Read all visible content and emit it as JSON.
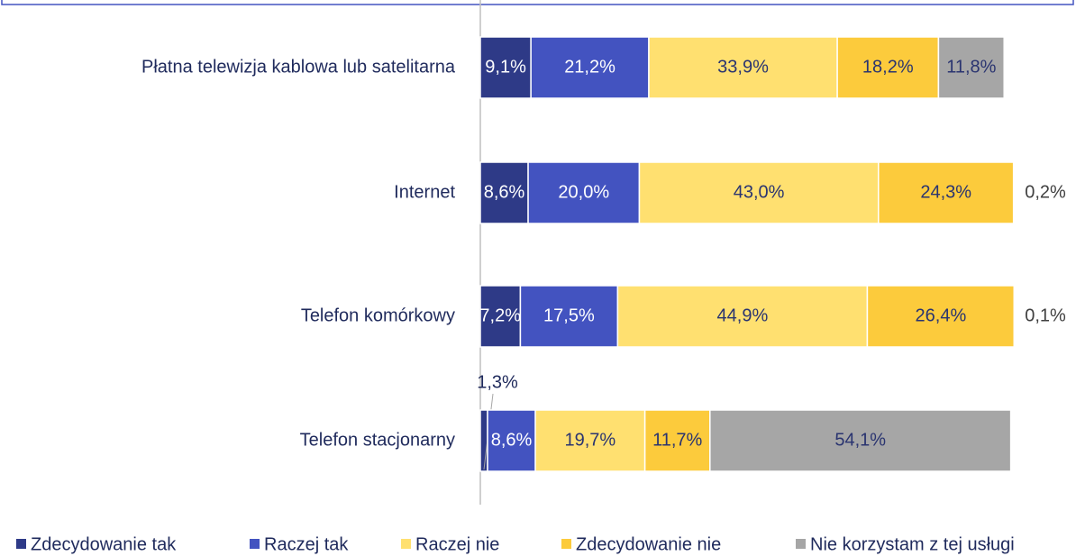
{
  "chart_data": {
    "type": "stacked-barh",
    "categories": [
      "Płatna telewizja kablowa lub satelitarna",
      "Internet",
      "Telefon komórkowy",
      "Telefon stacjonarny"
    ],
    "series": [
      {
        "name": "Zdecydowanie tak",
        "color": "#2e3a87",
        "values": [
          9.1,
          8.6,
          7.2,
          1.3
        ],
        "value_labels": [
          "9,1%",
          "8,6%",
          "7,2%",
          "1,3%"
        ]
      },
      {
        "name": "Raczej tak",
        "color": "#4353c0",
        "values": [
          21.2,
          20.0,
          17.5,
          8.6
        ],
        "value_labels": [
          "21,2%",
          "20,0%",
          "17,5%",
          "8,6%"
        ]
      },
      {
        "name": "Raczej nie",
        "color": "#ffe070",
        "values": [
          33.9,
          43.0,
          44.9,
          19.7
        ],
        "value_labels": [
          "33,9%",
          "43,0%",
          "44,9%",
          "19,7%"
        ]
      },
      {
        "name": "Zdecydowanie nie",
        "color": "#fccb3c",
        "values": [
          18.2,
          24.3,
          26.4,
          11.7
        ],
        "value_labels": [
          "18,2%",
          "24,3%",
          "26,4%",
          "11,7%"
        ]
      },
      {
        "name": "Nie korzystam z tej usługi",
        "color": "#a6a6a6",
        "values": [
          11.8,
          0.2,
          0.1,
          54.1
        ],
        "value_labels": [
          "11,8%",
          "0,2%",
          "0,1%",
          "54,1%"
        ]
      }
    ]
  }
}
